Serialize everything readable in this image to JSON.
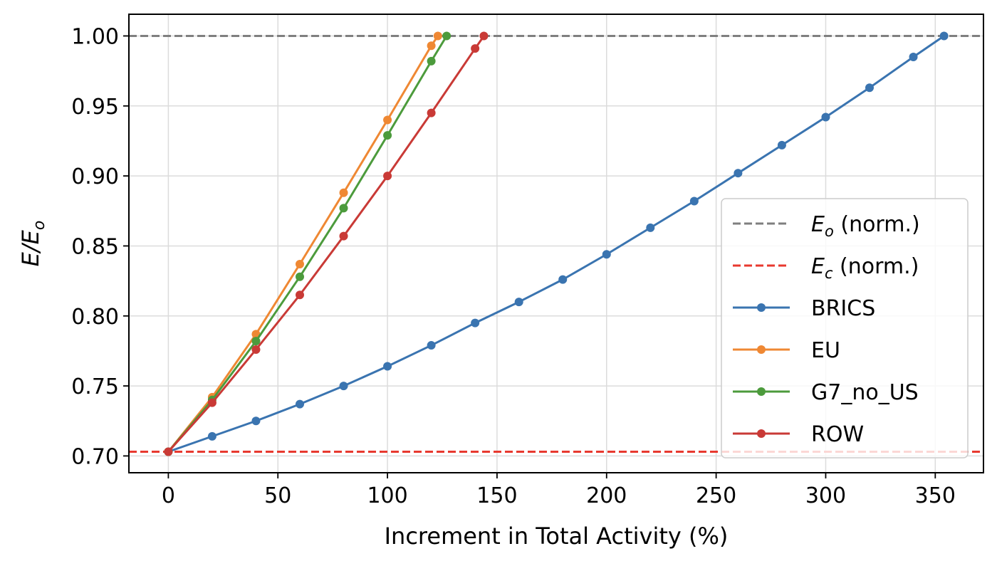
{
  "chart_data": {
    "type": "line",
    "xlabel": "Increment in Total Activity (%)",
    "ylabel": "E/E",
    "ylabel_sub": "o",
    "xlim": [
      -18,
      372
    ],
    "ylim": [
      0.688,
      1.0155
    ],
    "xticks": [
      0,
      50,
      100,
      150,
      200,
      250,
      300,
      350
    ],
    "xtick_labels": [
      "0",
      "50",
      "100",
      "150",
      "200",
      "250",
      "300",
      "350"
    ],
    "yticks": [
      0.7,
      0.75,
      0.8,
      0.85,
      0.9,
      0.95,
      1.0
    ],
    "ytick_labels": [
      "0.70",
      "0.75",
      "0.80",
      "0.85",
      "0.90",
      "0.95",
      "1.00"
    ],
    "grid": true,
    "legend_position": "lower-right",
    "reference_lines": [
      {
        "label": "E",
        "sub": "o",
        "suffix": " (norm.)",
        "y": 1.0,
        "color": "#7f7f7f",
        "style": "dashed"
      },
      {
        "label": "E",
        "sub": "c",
        "suffix": " (norm.)",
        "y": 0.703,
        "color": "#e8392f",
        "style": "dashed"
      }
    ],
    "series": [
      {
        "name": "BRICS",
        "color": "#3a74b0",
        "x": [
          0,
          20,
          40,
          60,
          80,
          100,
          120,
          140,
          160,
          180,
          200,
          220,
          240,
          260,
          280,
          300,
          320,
          340,
          354
        ],
        "y": [
          0.703,
          0.714,
          0.725,
          0.737,
          0.75,
          0.764,
          0.779,
          0.795,
          0.81,
          0.826,
          0.844,
          0.863,
          0.882,
          0.902,
          0.922,
          0.942,
          0.963,
          0.985,
          1.0
        ]
      },
      {
        "name": "EU",
        "color": "#ef8833",
        "x": [
          0,
          20,
          40,
          60,
          80,
          100,
          120,
          123
        ],
        "y": [
          0.703,
          0.742,
          0.787,
          0.837,
          0.888,
          0.94,
          0.993,
          1.0
        ]
      },
      {
        "name": "G7_no_US",
        "color": "#4c9b3c",
        "x": [
          0,
          20,
          40,
          60,
          80,
          100,
          120,
          127
        ],
        "y": [
          0.703,
          0.74,
          0.782,
          0.828,
          0.877,
          0.929,
          0.982,
          1.0
        ]
      },
      {
        "name": "ROW",
        "color": "#c93a36",
        "x": [
          0,
          20,
          40,
          60,
          80,
          100,
          120,
          140,
          144
        ],
        "y": [
          0.703,
          0.738,
          0.776,
          0.815,
          0.857,
          0.9,
          0.945,
          0.991,
          1.0
        ]
      }
    ]
  }
}
